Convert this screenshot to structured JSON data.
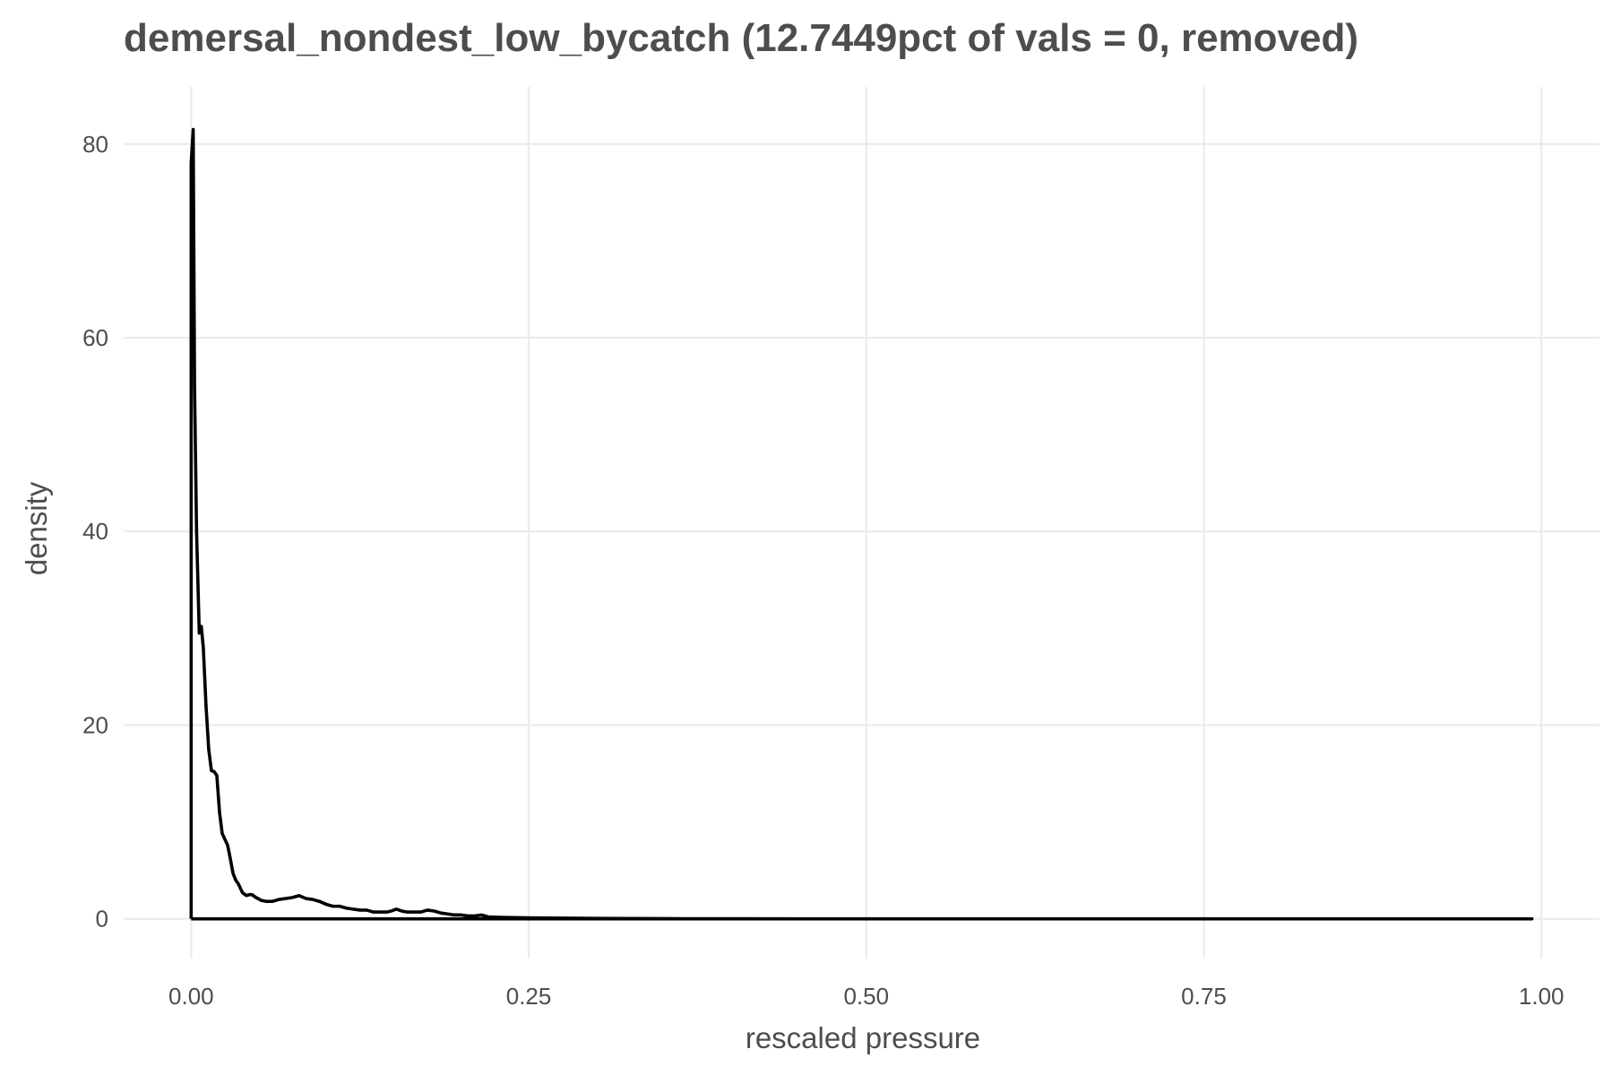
{
  "chart_data": {
    "type": "line",
    "title": "demersal_nondest_low_bycatch (12.7449pct of vals = 0, removed)",
    "xlabel": "rescaled pressure",
    "ylabel": "density",
    "xlim": [
      -0.05,
      1.043
    ],
    "ylim": [
      -4.1,
      85.9
    ],
    "x_ticks": [
      0,
      0.25,
      0.5,
      0.75,
      1
    ],
    "x_tick_labels": [
      "0.00",
      "0.25",
      "0.50",
      "0.75",
      "1.00"
    ],
    "y_ticks": [
      0,
      20,
      40,
      60,
      80
    ],
    "y_tick_labels": [
      "0",
      "20",
      "40",
      "60",
      "80"
    ],
    "grid": true,
    "legend": "none",
    "colors": {
      "line": "#000000",
      "grid": "#ebebeb",
      "text": "#4d4d4d"
    },
    "series": [
      {
        "x": [
          0.0,
          0.0,
          0.0015,
          0.0025,
          0.004,
          0.006,
          0.0075,
          0.009,
          0.011,
          0.013,
          0.015,
          0.017,
          0.019,
          0.021,
          0.023,
          0.025,
          0.027,
          0.029,
          0.031,
          0.033,
          0.035,
          0.038,
          0.041,
          0.043,
          0.045,
          0.048,
          0.052,
          0.056,
          0.06,
          0.065,
          0.07,
          0.075,
          0.08,
          0.085,
          0.09,
          0.095,
          0.1,
          0.105,
          0.11,
          0.115,
          0.12,
          0.125,
          0.13,
          0.135,
          0.14,
          0.145,
          0.148,
          0.152,
          0.156,
          0.16,
          0.165,
          0.17,
          0.175,
          0.18,
          0.185,
          0.19,
          0.195,
          0.2,
          0.205,
          0.21,
          0.215,
          0.22,
          0.23,
          0.25,
          0.3,
          0.35,
          0.4,
          0.5,
          0.6,
          0.7,
          0.8,
          0.9,
          0.993,
          0.993,
          0.0
        ],
        "y": [
          0,
          78.0,
          81.5,
          55.0,
          40.0,
          29.5,
          30.2,
          28.0,
          22.0,
          17.5,
          15.3,
          15.2,
          14.8,
          11.0,
          8.8,
          8.2,
          7.6,
          6.2,
          4.7,
          4.0,
          3.6,
          2.7,
          2.4,
          2.5,
          2.5,
          2.2,
          1.9,
          1.8,
          1.8,
          2.0,
          2.1,
          2.2,
          2.4,
          2.1,
          2.0,
          1.8,
          1.5,
          1.3,
          1.3,
          1.1,
          1.0,
          0.9,
          0.9,
          0.7,
          0.7,
          0.7,
          0.8,
          1.0,
          0.8,
          0.7,
          0.7,
          0.7,
          0.9,
          0.8,
          0.6,
          0.5,
          0.4,
          0.4,
          0.3,
          0.3,
          0.4,
          0.2,
          0.15,
          0.1,
          0.05,
          0.02,
          0.01,
          0,
          0,
          0,
          0,
          0,
          0,
          0,
          0
        ]
      }
    ]
  }
}
